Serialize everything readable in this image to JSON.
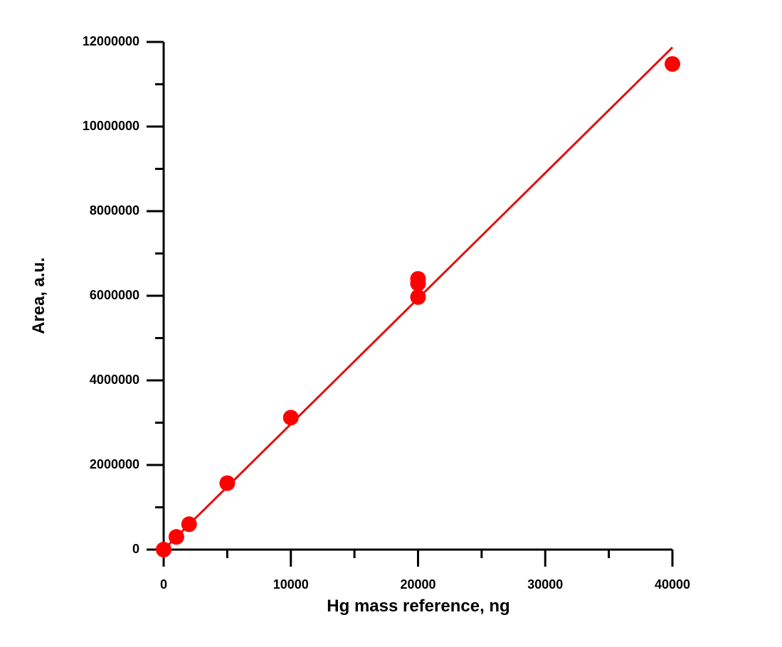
{
  "chart_data": {
    "type": "scatter",
    "xlabel": "Hg mass reference, ng",
    "ylabel": "Area, a.u.",
    "xlim": [
      0,
      40000
    ],
    "ylim": [
      0,
      12000000
    ],
    "xticks": [
      0,
      10000,
      20000,
      30000,
      40000
    ],
    "yticks": [
      0,
      2000000,
      4000000,
      6000000,
      8000000,
      10000000,
      12000000
    ],
    "xminorticks": [
      5000,
      15000,
      25000,
      35000
    ],
    "yminorticks": [
      1000000,
      3000000,
      5000000,
      7000000,
      9000000,
      11000000
    ],
    "series": [
      {
        "mode": "markers",
        "color": "#ff0000",
        "x": [
          0,
          1000,
          2000,
          5000,
          10000,
          20000,
          20000,
          20000,
          40000
        ],
        "values": [
          0,
          300000,
          600000,
          1570000,
          3120000,
          6400000,
          6290000,
          5970000,
          11480000
        ]
      },
      {
        "mode": "line",
        "color": "#e01010",
        "x": [
          0,
          40000
        ],
        "values": [
          0,
          11870000
        ]
      }
    ]
  }
}
